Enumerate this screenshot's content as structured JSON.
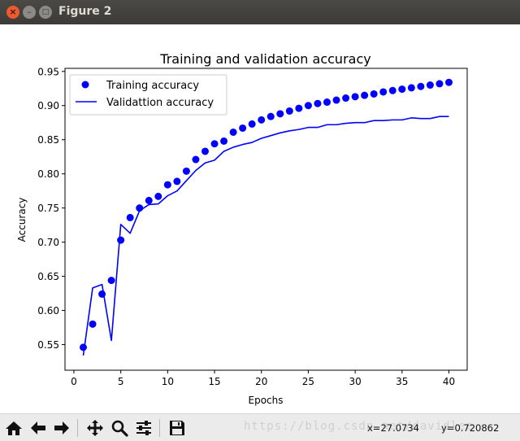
{
  "window": {
    "title": "Figure 2",
    "close_glyph": "×",
    "minimize_glyph": "–",
    "maximize_glyph": "□"
  },
  "chart_data": {
    "type": "line",
    "title": "Training and validation accuracy",
    "xlabel": "Epochs",
    "ylabel": "Accuracy",
    "xlim": [
      -0.95,
      41.95
    ],
    "ylim": [
      0.5125,
      0.9545
    ],
    "xticks": [
      0,
      5,
      10,
      15,
      20,
      25,
      30,
      35,
      40
    ],
    "xtick_labels": [
      "0",
      "5",
      "10",
      "15",
      "20",
      "25",
      "30",
      "35",
      "40"
    ],
    "yticks": [
      0.55,
      0.6,
      0.65,
      0.7,
      0.75,
      0.8,
      0.85,
      0.9,
      0.95
    ],
    "ytick_labels": [
      "0.55",
      "0.60",
      "0.65",
      "0.70",
      "0.75",
      "0.80",
      "0.85",
      "0.90",
      "0.95"
    ],
    "grid": false,
    "legend_position": "top-left",
    "x": [
      1,
      2,
      3,
      4,
      5,
      6,
      7,
      8,
      9,
      10,
      11,
      12,
      13,
      14,
      15,
      16,
      17,
      18,
      19,
      20,
      21,
      22,
      23,
      24,
      25,
      26,
      27,
      28,
      29,
      30,
      31,
      32,
      33,
      34,
      35,
      36,
      37,
      38,
      39,
      40
    ],
    "series": [
      {
        "name": "Training accuracy",
        "style": "points",
        "color": "#0000ff",
        "values": [
          0.546,
          0.58,
          0.624,
          0.644,
          0.703,
          0.736,
          0.75,
          0.761,
          0.767,
          0.784,
          0.789,
          0.804,
          0.821,
          0.833,
          0.844,
          0.848,
          0.861,
          0.867,
          0.873,
          0.879,
          0.884,
          0.888,
          0.892,
          0.896,
          0.9,
          0.903,
          0.905,
          0.908,
          0.911,
          0.913,
          0.915,
          0.917,
          0.92,
          0.922,
          0.924,
          0.926,
          0.928,
          0.93,
          0.932,
          0.934
        ]
      },
      {
        "name": "Validattion accuracy",
        "style": "line",
        "color": "#0000ff",
        "values": [
          0.534,
          0.633,
          0.638,
          0.556,
          0.726,
          0.713,
          0.746,
          0.755,
          0.756,
          0.768,
          0.775,
          0.79,
          0.805,
          0.816,
          0.82,
          0.833,
          0.839,
          0.843,
          0.846,
          0.852,
          0.856,
          0.86,
          0.863,
          0.865,
          0.868,
          0.868,
          0.872,
          0.872,
          0.874,
          0.875,
          0.875,
          0.878,
          0.878,
          0.879,
          0.879,
          0.882,
          0.881,
          0.881,
          0.884,
          0.884
        ]
      }
    ]
  },
  "toolbar": {
    "buttons": [
      {
        "name": "home-icon",
        "glyph": "⌂"
      },
      {
        "name": "back-icon",
        "glyph": "←"
      },
      {
        "name": "forward-icon",
        "glyph": "→"
      },
      {
        "name": "pan-icon",
        "glyph": "✥"
      },
      {
        "name": "zoom-icon",
        "glyph": "⚲"
      },
      {
        "name": "subplots-icon",
        "glyph": "☰"
      },
      {
        "name": "save-icon",
        "glyph": "💾"
      }
    ],
    "watermark": "https://blog.csdn.net/davidlee",
    "x_readout": "x=27.0734",
    "y_readout": "y=0.720862"
  }
}
